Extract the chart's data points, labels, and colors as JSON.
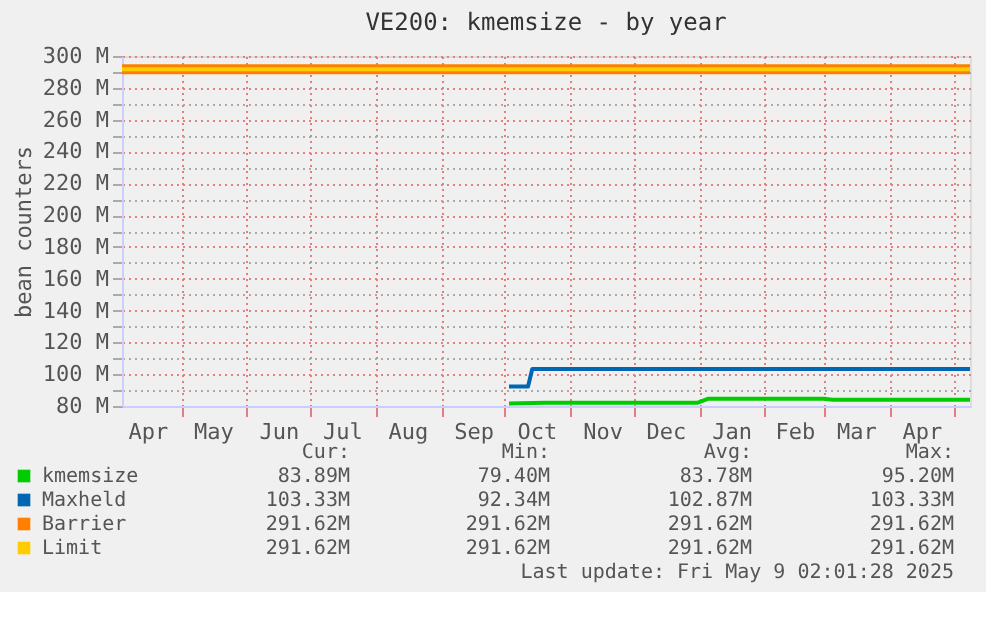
{
  "chart_data": {
    "type": "line",
    "title": "VE200: kmemsize - by year",
    "ylabel": "bean counters",
    "xlim": [
      "2024-04-03",
      "2025-05-09"
    ],
    "xticks": [
      {
        "value": "2024-04-15",
        "label": "Apr"
      },
      {
        "value": "2024-05-01",
        "label": null
      },
      {
        "value": "2024-05-16",
        "label": "May"
      },
      {
        "value": "2024-06-01",
        "label": null
      },
      {
        "value": "2024-06-16",
        "label": "Jun"
      },
      {
        "value": "2024-07-01",
        "label": null
      },
      {
        "value": "2024-07-16",
        "label": "Jul"
      },
      {
        "value": "2024-08-01",
        "label": null
      },
      {
        "value": "2024-08-16",
        "label": "Aug"
      },
      {
        "value": "2024-09-01",
        "label": null
      },
      {
        "value": "2024-09-16",
        "label": "Sep"
      },
      {
        "value": "2024-10-01",
        "label": null
      },
      {
        "value": "2024-10-16",
        "label": "Oct"
      },
      {
        "value": "2024-11-01",
        "label": null
      },
      {
        "value": "2024-11-16",
        "label": "Nov"
      },
      {
        "value": "2024-12-01",
        "label": null
      },
      {
        "value": "2024-12-16",
        "label": "Dec"
      },
      {
        "value": "2025-01-01",
        "label": null
      },
      {
        "value": "2025-01-16",
        "label": "Jan"
      },
      {
        "value": "2025-02-01",
        "label": null
      },
      {
        "value": "2025-02-15",
        "label": "Feb"
      },
      {
        "value": "2025-03-01",
        "label": null
      },
      {
        "value": "2025-03-16",
        "label": "Mar"
      },
      {
        "value": "2025-04-01",
        "label": null
      },
      {
        "value": "2025-04-16",
        "label": "Apr"
      },
      {
        "value": "2025-05-01",
        "label": null
      }
    ],
    "ylim": [
      80,
      300
    ],
    "yticks": [
      {
        "value": 80,
        "label": "80 M"
      },
      {
        "value": 90,
        "label": null
      },
      {
        "value": 100,
        "label": "100 M"
      },
      {
        "value": 110,
        "label": null
      },
      {
        "value": 120,
        "label": "120 M"
      },
      {
        "value": 130,
        "label": null
      },
      {
        "value": 140,
        "label": "140 M"
      },
      {
        "value": 150,
        "label": null
      },
      {
        "value": 160,
        "label": "160 M"
      },
      {
        "value": 170,
        "label": null
      },
      {
        "value": 180,
        "label": "180 M"
      },
      {
        "value": 190,
        "label": null
      },
      {
        "value": 200,
        "label": "200 M"
      },
      {
        "value": 210,
        "label": null
      },
      {
        "value": 220,
        "label": "220 M"
      },
      {
        "value": 230,
        "label": null
      },
      {
        "value": 240,
        "label": "240 M"
      },
      {
        "value": 250,
        "label": null
      },
      {
        "value": 260,
        "label": "260 M"
      },
      {
        "value": 270,
        "label": null
      },
      {
        "value": 280,
        "label": "280 M"
      },
      {
        "value": 290,
        "label": null
      },
      {
        "value": 300,
        "label": "300 M"
      }
    ],
    "grid": true,
    "legend": "bottom",
    "marker": "none",
    "line_style": "solid",
    "series": [
      {
        "name": "kmemsize",
        "color": "#00cc00",
        "x": [
          "2024-10-03",
          "2024-10-20",
          "2024-11-15",
          "2024-12-15",
          "2024-12-31",
          "2025-01-05",
          "2025-02-01",
          "2025-03-01",
          "2025-03-05",
          "2025-05-09"
        ],
        "values": [
          81.5,
          82,
          82,
          82,
          82,
          84.5,
          84.5,
          84.5,
          83.9,
          83.9
        ]
      },
      {
        "name": "Maxheld",
        "color": "#0066b3",
        "x": [
          "2024-10-03",
          "2024-10-12",
          "2024-10-14",
          "2025-05-09"
        ],
        "values": [
          92.3,
          92.3,
          103.3,
          103.3
        ]
      },
      {
        "name": "Barrier",
        "color": "#ff8000",
        "x": [
          "2024-04-03",
          "2025-05-09"
        ],
        "values": [
          291.6,
          291.6
        ]
      },
      {
        "name": "Limit",
        "color": "#ffcc00",
        "x": [
          "2024-04-03",
          "2025-05-09"
        ],
        "values": [
          291.6,
          291.6
        ]
      }
    ],
    "annotations": [
      "Cur:",
      "Min:",
      "Avg:",
      "Max:",
      "83.89M",
      "79.40M",
      "83.78M",
      "95.20M",
      "103.33M",
      "92.34M",
      "102.87M",
      "103.33M",
      "291.62M",
      "291.62M",
      "291.62M",
      "291.62M",
      "291.62M",
      "291.62M",
      "291.62M",
      "291.62M",
      "Last update: Fri May  9 02:01:28 2025"
    ]
  }
}
